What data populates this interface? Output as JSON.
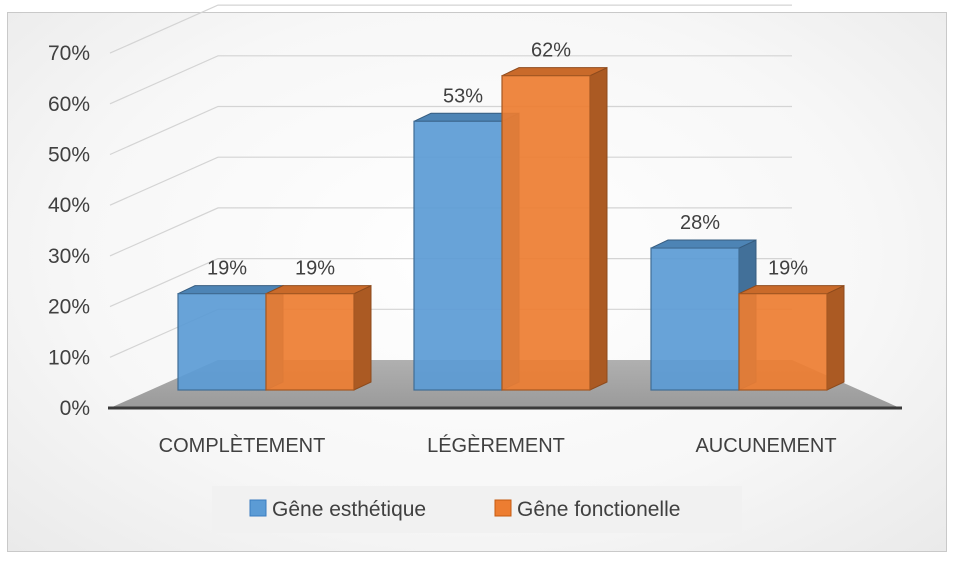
{
  "chart_data": {
    "type": "bar",
    "categories": [
      "COMPLÈTEMENT",
      "LÉGÈREMENT",
      "AUCUNEMENT"
    ],
    "series": [
      {
        "name": "Gêne esthétique",
        "values": [
          19,
          53,
          28
        ],
        "labels": [
          "19%",
          "53%",
          "28%"
        ],
        "color": "#5B9BD5"
      },
      {
        "name": "Gêne fonctionelle",
        "values": [
          19,
          62,
          19
        ],
        "labels": [
          "19%",
          "62%",
          "19%"
        ],
        "color": "#ED7D31"
      }
    ],
    "yticks": [
      "0%",
      "10%",
      "20%",
      "30%",
      "40%",
      "50%",
      "60%",
      "70%"
    ],
    "ylim": [
      0,
      70
    ],
    "grid": true,
    "legend": "bottom",
    "style": "3d-clustered-column"
  }
}
